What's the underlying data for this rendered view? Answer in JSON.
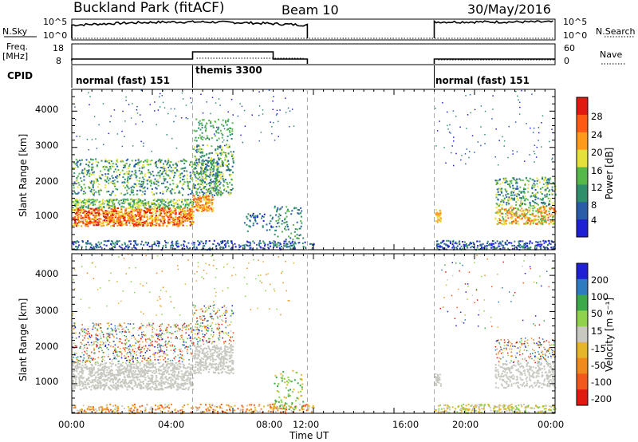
{
  "header": {
    "site": "Buckland Park (fitACF)",
    "beam": "Beam 10",
    "date": "30/May/2016"
  },
  "strip": {
    "nsky_label": "N.Sky",
    "nsky_ticks": [
      "10^5",
      "10^0"
    ],
    "nsearch_label": "N.Search",
    "nsearch_ticks": [
      "10^5",
      "10^0"
    ],
    "freq_label_1": "Freq.",
    "freq_label_2": "[MHz]",
    "freq_ticks": [
      "18",
      "8"
    ],
    "nave_label": "Nave",
    "nave_ticks": [
      "60",
      "0"
    ],
    "cpid_label": "CPID",
    "cpid_segments": [
      {
        "name": "normal (fast) 151",
        "start": 0,
        "end": 6
      },
      {
        "name": "themis 3300",
        "start": 6,
        "end": 11.7
      },
      {
        "name": "normal (fast) 151",
        "start": 18,
        "end": 24
      }
    ]
  },
  "chart_data": [
    {
      "type": "heatmap",
      "panel": "power",
      "xlabel": "",
      "ylabel": "Slant Range [km]",
      "xlim_hours": [
        0,
        24
      ],
      "ylim_km": [
        180,
        4600
      ],
      "yticks": [
        "1000",
        "2000",
        "3000",
        "4000"
      ],
      "colorbar_label": "Power [dB]",
      "colorbar_ticks": [
        "4",
        "8",
        "12",
        "16",
        "20",
        "24",
        "28"
      ],
      "colorbar_range": [
        0,
        30
      ],
      "colors": [
        "#1f1fd6",
        "#2a5ca8",
        "#2f8f6a",
        "#57b84a",
        "#e5e13a",
        "#ff9a1a",
        "#ff5a14",
        "#e01a10"
      ],
      "data_gap_hours": [
        11.7,
        18.0
      ],
      "segment_markers_hours": [
        6.0,
        11.7,
        18.0
      ]
    },
    {
      "type": "heatmap",
      "panel": "velocity",
      "xlabel": "Time UT",
      "ylabel": "Slant Range [km]",
      "xlim_hours": [
        0,
        24
      ],
      "ylim_km": [
        180,
        4600
      ],
      "yticks": [
        "1000",
        "2000",
        "3000",
        "4000"
      ],
      "xticks": [
        "00:00",
        "04:00",
        "08:00",
        "12:00",
        "16:00",
        "20:00",
        "00:00"
      ],
      "colorbar_label": "Velocity [m s⁻¹]",
      "colorbar_ticks": [
        "200",
        "100",
        "50",
        "15",
        "-15",
        "-50",
        "-100",
        "-200"
      ],
      "colors": [
        "#1f1fd6",
        "#2e7bbf",
        "#3ba84a",
        "#8fd24c",
        "#c8c8c0",
        "#e5b52a",
        "#f08a1e",
        "#f2571b",
        "#e01a10"
      ],
      "data_gap_hours": [
        11.7,
        18.0
      ]
    }
  ]
}
